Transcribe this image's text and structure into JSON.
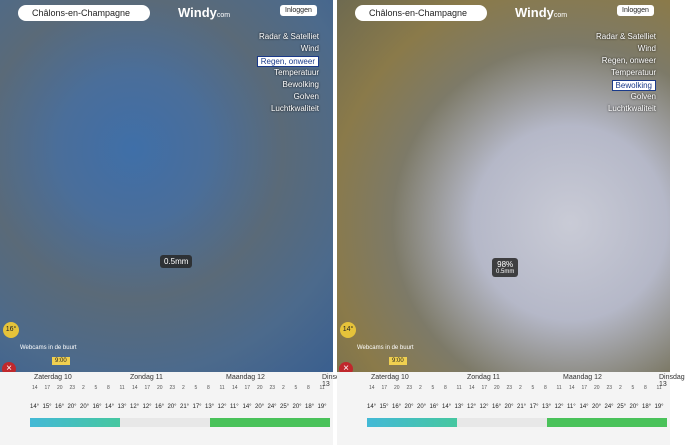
{
  "panels": [
    {
      "search": "Châlons-en-Champagne",
      "logo": "Windy",
      "logo_suffix": "com",
      "login": "Inloggen",
      "menu": [
        "Radar & Satelliet",
        "Wind",
        "Regen, onweer",
        "Temperatuur",
        "Bewolking",
        "Golven",
        "Luchtkwaliteit"
      ],
      "active_menu": 2,
      "marker": [
        "0.5mm"
      ],
      "temperature": "16°",
      "webcams": "Webcams in de buurt",
      "time": "9:00"
    },
    {
      "search": "Châlons-en-Champagne",
      "logo": "Windy",
      "logo_suffix": "com",
      "login": "Inloggen",
      "menu": [
        "Radar & Satelliet",
        "Wind",
        "Regen, onweer",
        "Temperatuur",
        "Bewolking",
        "Golven",
        "Luchtkwaliteit"
      ],
      "active_menu": 4,
      "marker": [
        "98%",
        "0.5mm"
      ],
      "temperature": "14°",
      "webcams": "Webcams in de buurt",
      "time": "9:00"
    }
  ],
  "forecast": {
    "days": [
      "Zaterdag 10",
      "Zondag 11",
      "Maandag 12",
      "Dinsdag 13"
    ],
    "hours": [
      14,
      17,
      20,
      23,
      2,
      5,
      8,
      11,
      14,
      17,
      20,
      23,
      2,
      5,
      8,
      11,
      14,
      17,
      20,
      23,
      2,
      5,
      8,
      11
    ],
    "temperatures": [
      "14°",
      "15°",
      "16°",
      "20°",
      "20°",
      "16°",
      "14°",
      "13°",
      "12°",
      "12°",
      "16°",
      "20°",
      "21°",
      "17°",
      "13°",
      "12°",
      "11°",
      "14°",
      "20°",
      "24°",
      "25°",
      "20°",
      "18°",
      "19°"
    ]
  }
}
